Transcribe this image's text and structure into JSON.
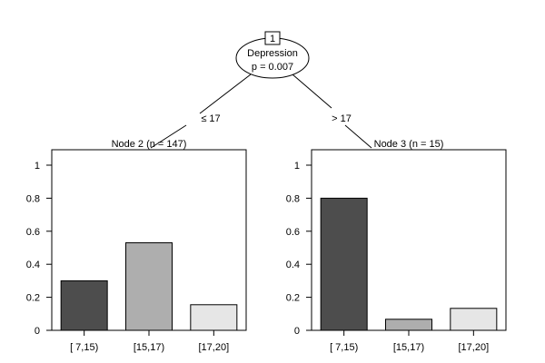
{
  "tree": {
    "root": {
      "id": "1",
      "variable": "Depression",
      "pvalue_text": "p = 0.007"
    },
    "edges": [
      {
        "label": "≤ 17"
      },
      {
        "label": "> 17"
      }
    ]
  },
  "chart_data": [
    {
      "type": "bar",
      "title": "Node 2 (n = 147)",
      "categories": [
        "[ 7,15)",
        "[15,17)",
        "[17,20]"
      ],
      "values": [
        0.3,
        0.53,
        0.155
      ],
      "ylim": [
        0,
        1
      ],
      "yticks": [
        "0",
        "0.2",
        "0.4",
        "0.6",
        "0.8",
        "1"
      ],
      "bar_colors": [
        "#4d4d4d",
        "#aeaeae",
        "#e6e6e6"
      ]
    },
    {
      "type": "bar",
      "title": "Node 3 (n = 15)",
      "categories": [
        "[ 7,15)",
        "[15,17)",
        "[17,20]"
      ],
      "values": [
        0.8,
        0.067,
        0.133
      ],
      "ylim": [
        0,
        1
      ],
      "yticks": [
        "0",
        "0.2",
        "0.4",
        "0.6",
        "0.8",
        "1"
      ],
      "bar_colors": [
        "#4d4d4d",
        "#aeaeae",
        "#e6e6e6"
      ]
    }
  ]
}
